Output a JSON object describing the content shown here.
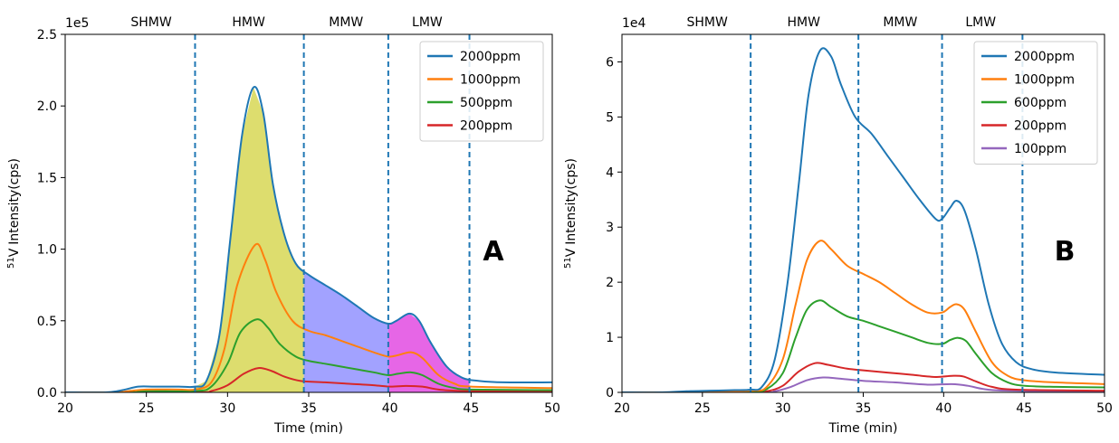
{
  "chart_data": [
    {
      "type": "line",
      "panel_letter": "A",
      "offset_label": "1e5",
      "xlabel": "Time (min)",
      "ylabel": "Intensity(cps)",
      "ylabel_sup": "51",
      "ylabel_elem": "V",
      "xlim": [
        20,
        50
      ],
      "ylim": [
        0,
        2.5
      ],
      "xticks": [
        20,
        25,
        30,
        35,
        40,
        45,
        50
      ],
      "yticks": [
        0.0,
        0.5,
        1.0,
        1.5,
        2.0,
        2.5
      ],
      "ytick_labels": [
        "0.0",
        "0.5",
        "1.0",
        "1.5",
        "2.0",
        "2.5"
      ],
      "grid": false,
      "legend_position": "top-right",
      "boundaries": [
        28,
        34.7,
        39.9,
        44.9
      ],
      "regions": [
        {
          "label": "SHMW",
          "center": 25.3
        },
        {
          "label": "HMW",
          "center": 31.3
        },
        {
          "label": "MMW",
          "center": 37.3
        },
        {
          "label": "LMW",
          "center": 42.3
        }
      ],
      "fills": [
        {
          "from": 28,
          "to": 34.7,
          "color": "#d4d44a"
        },
        {
          "from": 34.7,
          "to": 39.9,
          "color": "#8b8bff"
        },
        {
          "from": 39.9,
          "to": 44.9,
          "color": "#e040e0"
        }
      ],
      "fill_series": "2000ppm",
      "series": [
        {
          "name": "2000ppm",
          "color": "#1f77b4",
          "points": [
            [
              20,
              0
            ],
            [
              22.5,
              0
            ],
            [
              23.5,
              0.015
            ],
            [
              24.5,
              0.04
            ],
            [
              25.5,
              0.04
            ],
            [
              27,
              0.04
            ],
            [
              28,
              0.04
            ],
            [
              28.7,
              0.08
            ],
            [
              29.5,
              0.4
            ],
            [
              30.2,
              1.1
            ],
            [
              30.9,
              1.8
            ],
            [
              31.6,
              2.13
            ],
            [
              32.2,
              1.95
            ],
            [
              32.8,
              1.45
            ],
            [
              33.5,
              1.1
            ],
            [
              34.2,
              0.9
            ],
            [
              35,
              0.82
            ],
            [
              36,
              0.75
            ],
            [
              37,
              0.68
            ],
            [
              38,
              0.6
            ],
            [
              39,
              0.52
            ],
            [
              39.9,
              0.48
            ],
            [
              40.4,
              0.5
            ],
            [
              41.2,
              0.55
            ],
            [
              41.8,
              0.5
            ],
            [
              42.5,
              0.35
            ],
            [
              43.5,
              0.18
            ],
            [
              44.5,
              0.1
            ],
            [
              45.5,
              0.08
            ],
            [
              47,
              0.07
            ],
            [
              50,
              0.07
            ]
          ]
        },
        {
          "name": "1000ppm",
          "color": "#ff7f0e",
          "points": [
            [
              20,
              0
            ],
            [
              23,
              0
            ],
            [
              24,
              0.01
            ],
            [
              25,
              0.02
            ],
            [
              27,
              0.02
            ],
            [
              28,
              0.02
            ],
            [
              29,
              0.07
            ],
            [
              29.8,
              0.3
            ],
            [
              30.6,
              0.75
            ],
            [
              31.7,
              1.03
            ],
            [
              32.3,
              0.93
            ],
            [
              33,
              0.7
            ],
            [
              34,
              0.5
            ],
            [
              35,
              0.43
            ],
            [
              36,
              0.4
            ],
            [
              37,
              0.36
            ],
            [
              38,
              0.32
            ],
            [
              39,
              0.28
            ],
            [
              39.9,
              0.25
            ],
            [
              40.5,
              0.26
            ],
            [
              41.3,
              0.28
            ],
            [
              42,
              0.24
            ],
            [
              43,
              0.12
            ],
            [
              44,
              0.06
            ],
            [
              45,
              0.04
            ],
            [
              50,
              0.03
            ]
          ]
        },
        {
          "name": "500ppm",
          "color": "#2ca02c",
          "points": [
            [
              20,
              0
            ],
            [
              24,
              0
            ],
            [
              25,
              0.01
            ],
            [
              28,
              0.01
            ],
            [
              29,
              0.04
            ],
            [
              30,
              0.2
            ],
            [
              30.8,
              0.42
            ],
            [
              31.8,
              0.51
            ],
            [
              32.5,
              0.45
            ],
            [
              33.2,
              0.34
            ],
            [
              34.2,
              0.25
            ],
            [
              35,
              0.22
            ],
            [
              36,
              0.2
            ],
            [
              37,
              0.18
            ],
            [
              38,
              0.16
            ],
            [
              39,
              0.14
            ],
            [
              39.9,
              0.12
            ],
            [
              40.5,
              0.13
            ],
            [
              41.3,
              0.14
            ],
            [
              42,
              0.12
            ],
            [
              43,
              0.06
            ],
            [
              44,
              0.03
            ],
            [
              45,
              0.02
            ],
            [
              50,
              0.015
            ]
          ]
        },
        {
          "name": "200ppm",
          "color": "#d62728",
          "points": [
            [
              20,
              0
            ],
            [
              28,
              0
            ],
            [
              29,
              0.01
            ],
            [
              30,
              0.05
            ],
            [
              31,
              0.13
            ],
            [
              31.9,
              0.17
            ],
            [
              32.7,
              0.15
            ],
            [
              33.5,
              0.11
            ],
            [
              34.5,
              0.08
            ],
            [
              36,
              0.07
            ],
            [
              37.5,
              0.06
            ],
            [
              39,
              0.05
            ],
            [
              40,
              0.04
            ],
            [
              41,
              0.045
            ],
            [
              42,
              0.04
            ],
            [
              43,
              0.02
            ],
            [
              44.5,
              0.01
            ],
            [
              50,
              0.005
            ]
          ]
        }
      ]
    },
    {
      "type": "line",
      "panel_letter": "B",
      "offset_label": "1e4",
      "xlabel": "Time (min)",
      "ylabel": "Intensity(cps)",
      "ylabel_sup": "51",
      "ylabel_elem": "V",
      "xlim": [
        20,
        50
      ],
      "ylim": [
        0,
        6.5
      ],
      "xticks": [
        20,
        25,
        30,
        35,
        40,
        45,
        50
      ],
      "yticks": [
        0,
        1,
        2,
        3,
        4,
        5,
        6
      ],
      "ytick_labels": [
        "0",
        "1",
        "2",
        "3",
        "4",
        "5",
        "6"
      ],
      "grid": false,
      "legend_position": "top-right",
      "boundaries": [
        28,
        34.7,
        39.9,
        44.9
      ],
      "regions": [
        {
          "label": "SHMW",
          "center": 25.3
        },
        {
          "label": "HMW",
          "center": 31.3
        },
        {
          "label": "MMW",
          "center": 37.3
        },
        {
          "label": "LMW",
          "center": 42.3
        }
      ],
      "fills": [],
      "fill_series": "",
      "series": [
        {
          "name": "2000ppm",
          "color": "#1f77b4",
          "points": [
            [
              20,
              0
            ],
            [
              22.5,
              0
            ],
            [
              24,
              0.02
            ],
            [
              25.5,
              0.03
            ],
            [
              27,
              0.04
            ],
            [
              28,
              0.05
            ],
            [
              28.7,
              0.1
            ],
            [
              29.5,
              0.6
            ],
            [
              30.3,
              2.0
            ],
            [
              31,
              3.8
            ],
            [
              31.6,
              5.4
            ],
            [
              32.3,
              6.2
            ],
            [
              33,
              6.1
            ],
            [
              33.6,
              5.6
            ],
            [
              34.5,
              5.0
            ],
            [
              35.5,
              4.7
            ],
            [
              36.5,
              4.3
            ],
            [
              37.5,
              3.9
            ],
            [
              38.5,
              3.5
            ],
            [
              39.5,
              3.15
            ],
            [
              39.9,
              3.15
            ],
            [
              40.4,
              3.35
            ],
            [
              40.8,
              3.48
            ],
            [
              41.3,
              3.3
            ],
            [
              42,
              2.6
            ],
            [
              42.8,
              1.6
            ],
            [
              43.6,
              0.9
            ],
            [
              44.5,
              0.55
            ],
            [
              45.5,
              0.42
            ],
            [
              47,
              0.36
            ],
            [
              50,
              0.32
            ]
          ]
        },
        {
          "name": "1000ppm",
          "color": "#ff7f0e",
          "points": [
            [
              20,
              0
            ],
            [
              23,
              0
            ],
            [
              25,
              0.02
            ],
            [
              28,
              0.03
            ],
            [
              29,
              0.1
            ],
            [
              30,
              0.6
            ],
            [
              30.8,
              1.6
            ],
            [
              31.5,
              2.4
            ],
            [
              32.3,
              2.75
            ],
            [
              33,
              2.6
            ],
            [
              34,
              2.3
            ],
            [
              35,
              2.15
            ],
            [
              36,
              2.0
            ],
            [
              37,
              1.8
            ],
            [
              38,
              1.6
            ],
            [
              39,
              1.45
            ],
            [
              39.9,
              1.45
            ],
            [
              40.4,
              1.55
            ],
            [
              40.8,
              1.6
            ],
            [
              41.3,
              1.5
            ],
            [
              42,
              1.1
            ],
            [
              43,
              0.55
            ],
            [
              44,
              0.3
            ],
            [
              45,
              0.22
            ],
            [
              47,
              0.18
            ],
            [
              50,
              0.15
            ]
          ]
        },
        {
          "name": "600ppm",
          "color": "#2ca02c",
          "points": [
            [
              20,
              0
            ],
            [
              24,
              0
            ],
            [
              28,
              0.02
            ],
            [
              29,
              0.06
            ],
            [
              30,
              0.35
            ],
            [
              30.8,
              1.0
            ],
            [
              31.5,
              1.5
            ],
            [
              32.3,
              1.67
            ],
            [
              33,
              1.55
            ],
            [
              34,
              1.38
            ],
            [
              35,
              1.3
            ],
            [
              36,
              1.2
            ],
            [
              37,
              1.1
            ],
            [
              38,
              1.0
            ],
            [
              39,
              0.9
            ],
            [
              39.9,
              0.88
            ],
            [
              40.4,
              0.95
            ],
            [
              40.9,
              0.99
            ],
            [
              41.4,
              0.93
            ],
            [
              42,
              0.7
            ],
            [
              43,
              0.35
            ],
            [
              44,
              0.18
            ],
            [
              45,
              0.12
            ],
            [
              47,
              0.1
            ],
            [
              50,
              0.09
            ]
          ]
        },
        {
          "name": "200ppm",
          "color": "#d62728",
          "points": [
            [
              20,
              0
            ],
            [
              28,
              0
            ],
            [
              29,
              0.02
            ],
            [
              30,
              0.12
            ],
            [
              31,
              0.38
            ],
            [
              32,
              0.53
            ],
            [
              32.8,
              0.5
            ],
            [
              34,
              0.43
            ],
            [
              35,
              0.4
            ],
            [
              36.5,
              0.36
            ],
            [
              38,
              0.32
            ],
            [
              39.5,
              0.28
            ],
            [
              40.5,
              0.3
            ],
            [
              41.2,
              0.29
            ],
            [
              42,
              0.2
            ],
            [
              43,
              0.1
            ],
            [
              44.5,
              0.05
            ],
            [
              50,
              0.03
            ]
          ]
        },
        {
          "name": "100ppm",
          "color": "#9467bd",
          "points": [
            [
              20,
              0
            ],
            [
              28.5,
              0
            ],
            [
              29.5,
              0.02
            ],
            [
              30.5,
              0.1
            ],
            [
              31.5,
              0.22
            ],
            [
              32.5,
              0.27
            ],
            [
              33.5,
              0.25
            ],
            [
              35,
              0.21
            ],
            [
              37,
              0.18
            ],
            [
              39,
              0.14
            ],
            [
              40.5,
              0.15
            ],
            [
              41.5,
              0.12
            ],
            [
              42.5,
              0.06
            ],
            [
              44,
              0.03
            ],
            [
              50,
              0.01
            ]
          ]
        }
      ]
    }
  ]
}
